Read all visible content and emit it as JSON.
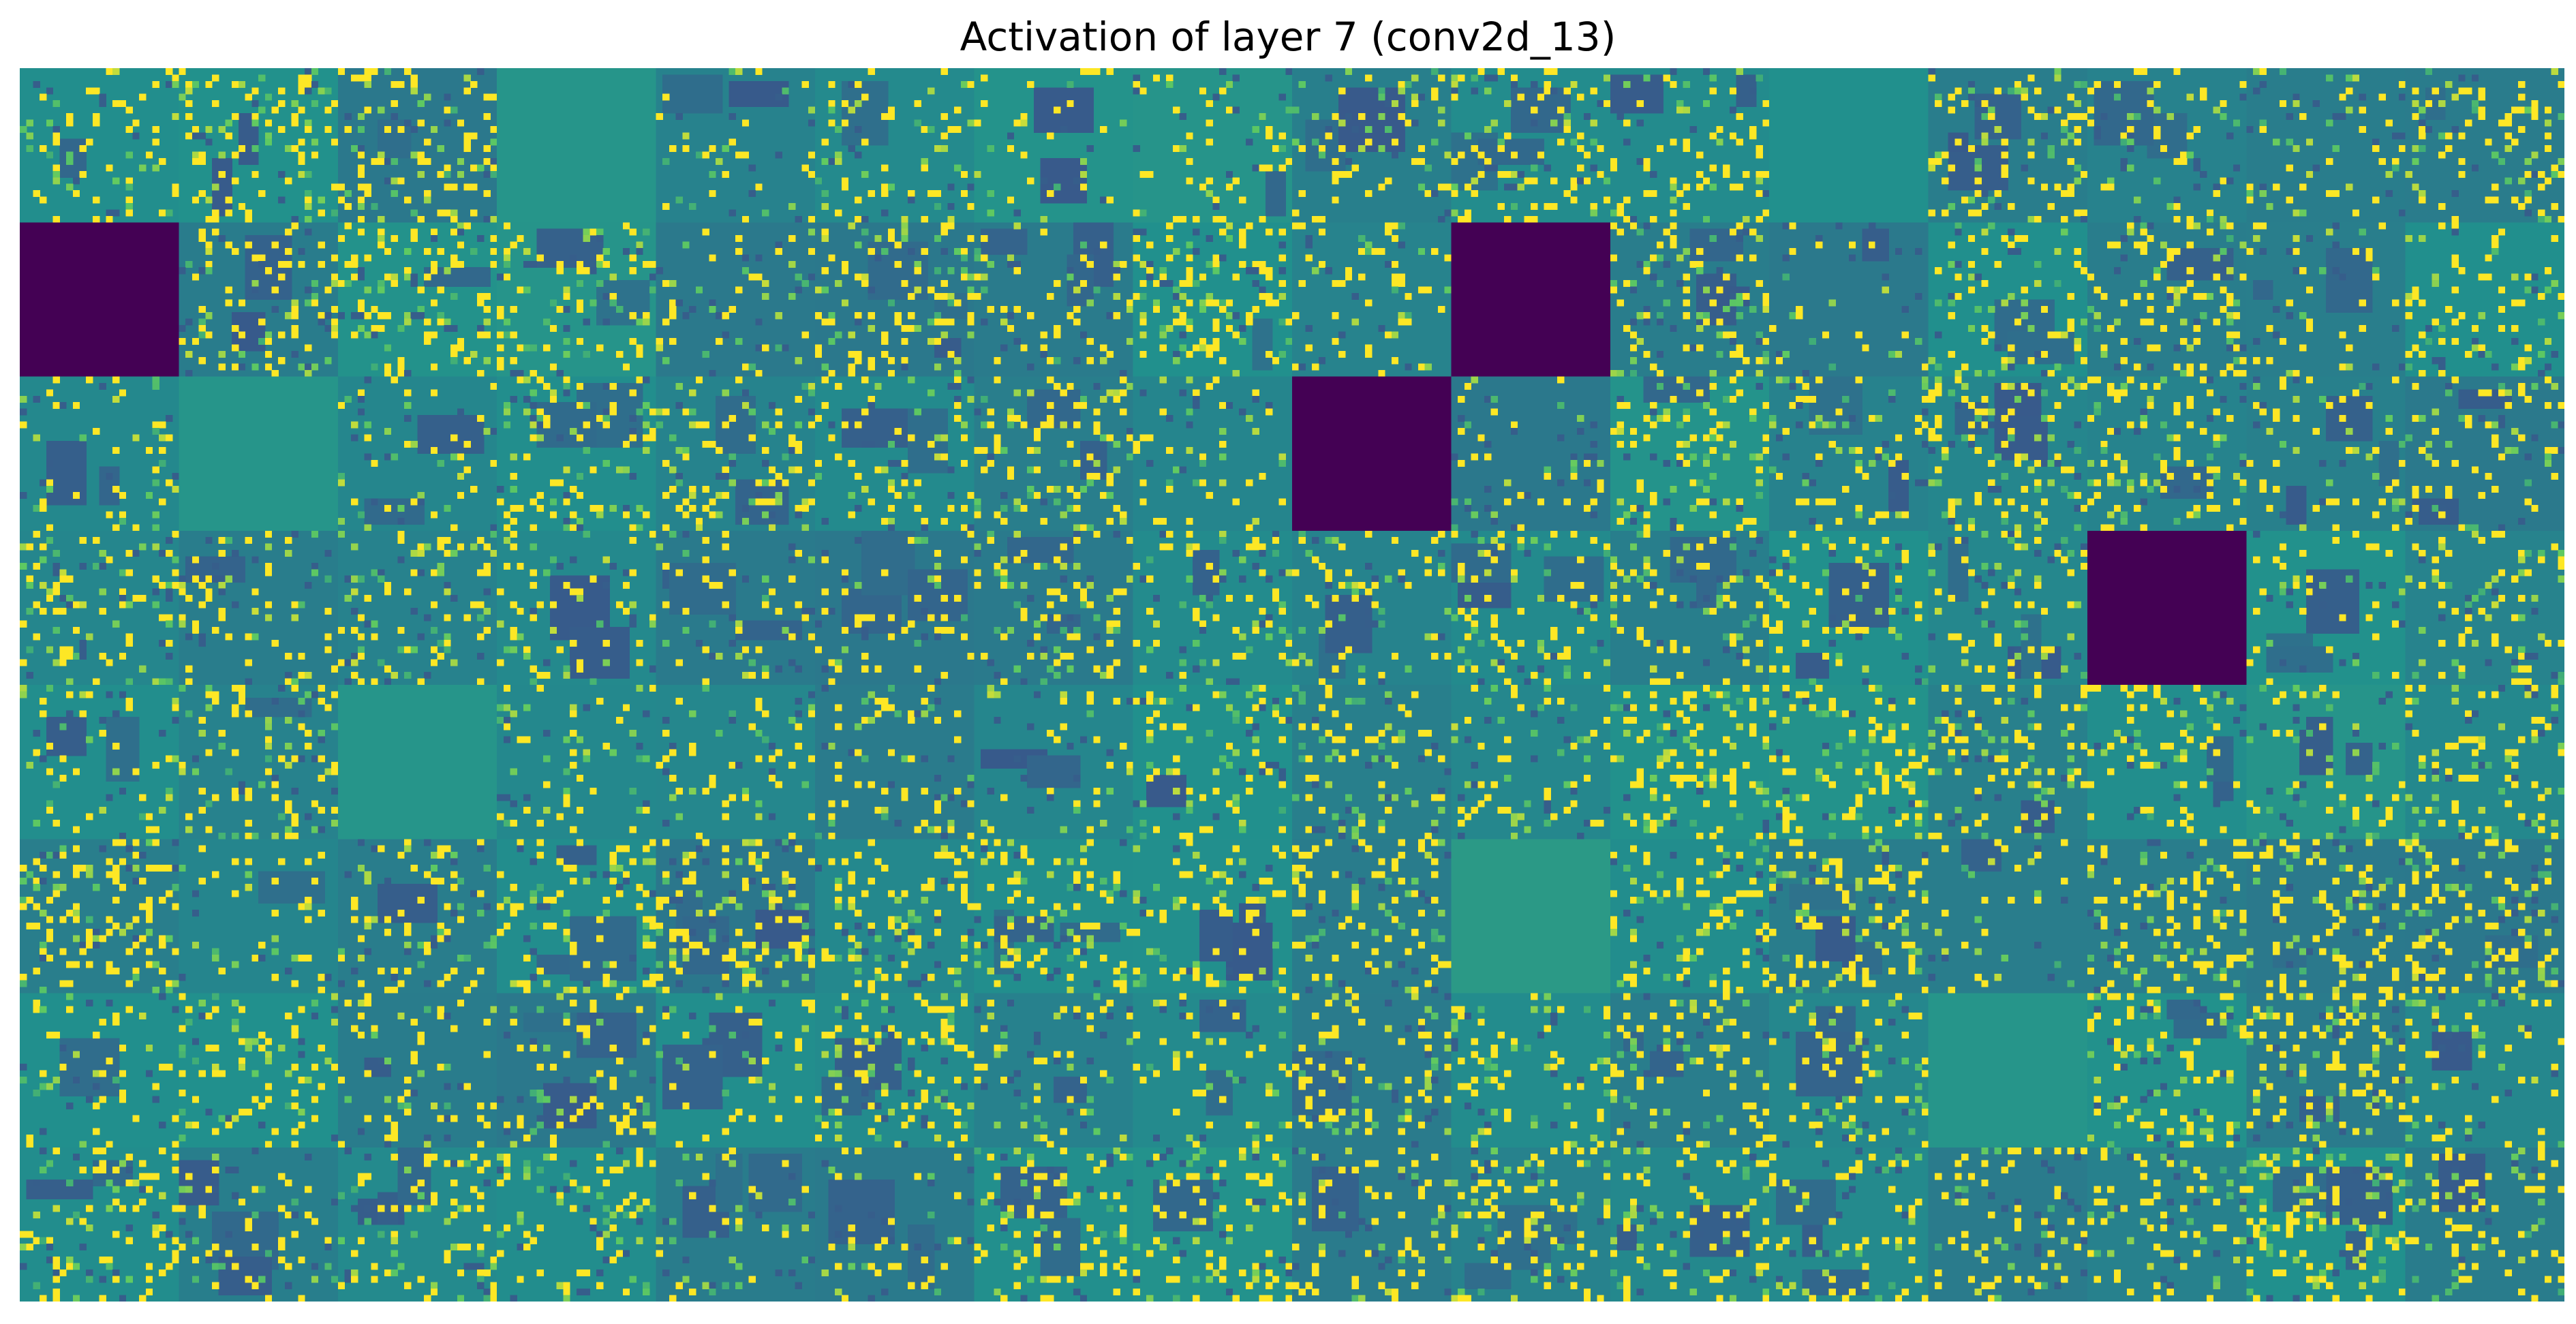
{
  "chart_data": {
    "type": "heatmap",
    "title": "Activation of layer 7 (conv2d_13)",
    "xlabel": "",
    "ylabel": "",
    "axes_visible": false,
    "grid": false,
    "colormap": "viridis",
    "tile_grid": {
      "rows": 8,
      "cols": 16
    },
    "channels_shown": 128,
    "tile_resolution": 24,
    "value_range": [
      0,
      1
    ],
    "dead_channels": [
      {
        "row": 1,
        "col": 0
      },
      {
        "row": 1,
        "col": 9
      },
      {
        "row": 2,
        "col": 8
      },
      {
        "row": 3,
        "col": 13
      }
    ],
    "flat_channels": [
      {
        "row": 0,
        "col": 11,
        "level": 0.5
      },
      {
        "row": 0,
        "col": 3,
        "level": 0.52
      },
      {
        "row": 2,
        "col": 1,
        "level": 0.52
      },
      {
        "row": 4,
        "col": 2,
        "level": 0.52
      },
      {
        "row": 5,
        "col": 9,
        "level": 0.54
      },
      {
        "row": 6,
        "col": 12,
        "level": 0.52
      }
    ],
    "colors": {
      "low": "#440154",
      "mid": "#21908d",
      "high": "#fde725"
    }
  }
}
